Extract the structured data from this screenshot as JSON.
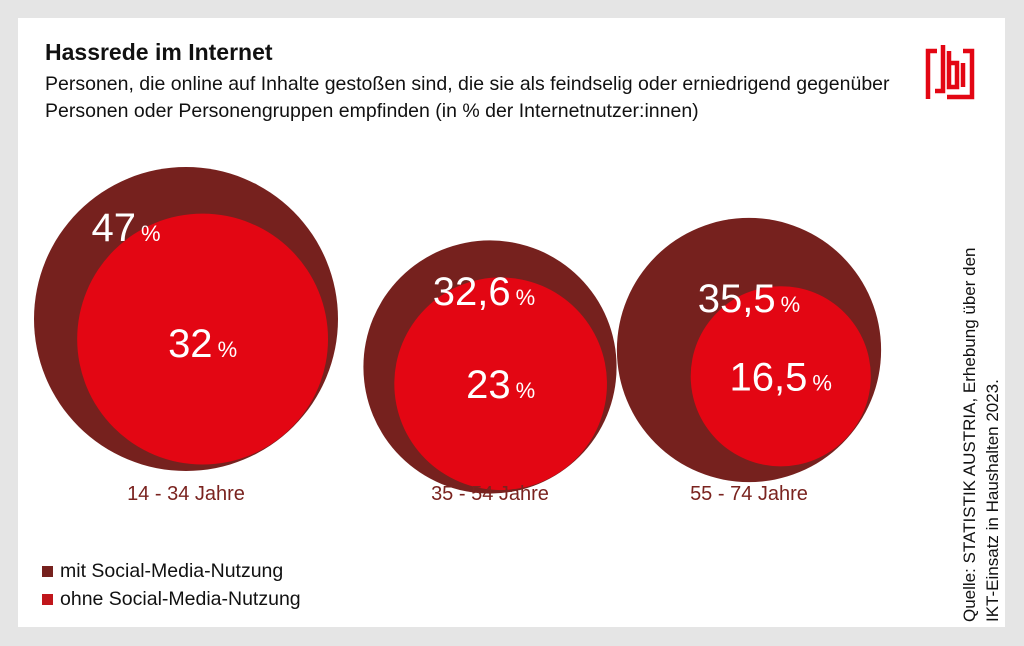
{
  "header": {
    "title": "Hassrede im Internet",
    "subtitle": "Personen, die online auf Inhalte gestoßen sind, die sie als feindselig oder erniedrigend gegenüber Personen oder Personengruppen empfinden (in % der Internetnutzer:innen)"
  },
  "logo": {
    "icon": "jbi-logo-icon",
    "color": "#e30613"
  },
  "source": {
    "line1": "Quelle: STATISTIK AUSTRIA, Erhebung über den",
    "line2": "IKT-Einsatz in Haushalten 2023."
  },
  "colors": {
    "with_social_media": "#76211e",
    "without_social_media": "#e30613",
    "category_label": "#7a231f"
  },
  "legend": [
    {
      "label": "mit Social-Media-Nutzung",
      "color": "#76211e"
    },
    {
      "label": "ohne Social-Media-Nutzung",
      "color": "#c0161b"
    }
  ],
  "chart_data": {
    "type": "bubble",
    "title": "Hassrede im Internet",
    "unit": "%",
    "categories": [
      "14 - 34 Jahre",
      "35 - 54 Jahre",
      "55 - 74 Jahre"
    ],
    "series": [
      {
        "name": "mit Social-Media-Nutzung",
        "values": [
          47,
          32.6,
          35.5
        ],
        "labels": [
          "47",
          "32,6",
          "35,5"
        ]
      },
      {
        "name": "ohne Social-Media-Nutzung",
        "values": [
          32,
          23,
          16.5
        ],
        "labels": [
          "32",
          "23",
          "16,5"
        ]
      }
    ]
  }
}
